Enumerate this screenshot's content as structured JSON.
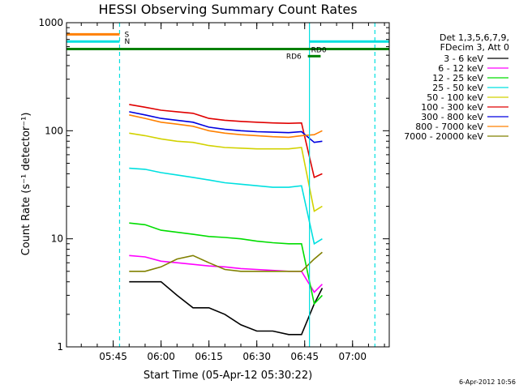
{
  "chart_data": {
    "type": "line",
    "title": "HESSI Observing Summary Count Rates",
    "xlabel": "Start Time (05-Apr-12 05:30:22)",
    "ylabel": "Count Rate (s⁻¹ detector⁻¹)",
    "yscale": "log",
    "ylim": [
      1,
      1000
    ],
    "xlim": [
      "05:30:22",
      "07:11:30"
    ],
    "x_ticks": [
      "05:45",
      "06:00",
      "06:15",
      "06:30",
      "06:45",
      "07:00"
    ],
    "y_ticks": [
      "1",
      "10",
      "100",
      "1000"
    ],
    "grid": false,
    "legend": {
      "placement": "right",
      "header": [
        "Det 1,3,5,6,7,9,",
        "FDecim 3, Att 0"
      ],
      "entries": [
        {
          "label": "3 - 6 keV",
          "color": "#000000"
        },
        {
          "label": "6 - 12 keV",
          "color": "#ff00ff"
        },
        {
          "label": "12 - 25 keV",
          "color": "#00dd00"
        },
        {
          "label": "25 - 50 keV",
          "color": "#00e0e0"
        },
        {
          "label": "50 - 100 keV",
          "color": "#d2d200"
        },
        {
          "label": "100 - 300 keV",
          "color": "#e00000"
        },
        {
          "label": "300 - 800 keV",
          "color": "#0000e0"
        },
        {
          "label": "800 - 7000 keV",
          "color": "#ff8000"
        },
        {
          "label": "7000 - 20000 keV",
          "color": "#808000"
        }
      ]
    },
    "series": [
      {
        "name": "3 - 6 keV",
        "color": "#000000",
        "x": [
          "05:50:00",
          "06:00:00",
          "06:05:00",
          "06:10:00",
          "06:15:00",
          "06:20:00",
          "06:25:00",
          "06:30:00",
          "06:35:00",
          "06:40:00",
          "06:44:00",
          "06:48:00",
          "06:50:30"
        ],
        "values": [
          4.0,
          4.0,
          3.0,
          2.3,
          2.3,
          2.0,
          1.6,
          1.4,
          1.4,
          1.3,
          1.3,
          2.5,
          3.5
        ]
      },
      {
        "name": "6 - 12 keV",
        "color": "#ff00ff",
        "x": [
          "05:50:00",
          "05:55:00",
          "06:00:00",
          "06:05:00",
          "06:10:00",
          "06:15:00",
          "06:20:00",
          "06:25:00",
          "06:30:00",
          "06:35:00",
          "06:40:00",
          "06:44:00",
          "06:48:00",
          "06:50:30"
        ],
        "values": [
          7.0,
          6.8,
          6.2,
          6.0,
          5.8,
          5.6,
          5.5,
          5.3,
          5.2,
          5.1,
          5.0,
          5.0,
          3.2,
          3.8
        ]
      },
      {
        "name": "12 - 25 keV",
        "color": "#00dd00",
        "x": [
          "05:50:00",
          "05:55:00",
          "06:00:00",
          "06:05:00",
          "06:10:00",
          "06:15:00",
          "06:20:00",
          "06:25:00",
          "06:30:00",
          "06:35:00",
          "06:40:00",
          "06:44:00",
          "06:48:00",
          "06:50:30"
        ],
        "values": [
          14.0,
          13.5,
          12.0,
          11.5,
          11.0,
          10.5,
          10.3,
          10.0,
          9.5,
          9.2,
          9.0,
          9.0,
          2.5,
          3.0
        ]
      },
      {
        "name": "25 - 50 keV",
        "color": "#00e0e0",
        "x": [
          "05:50:00",
          "05:55:00",
          "06:00:00",
          "06:05:00",
          "06:10:00",
          "06:15:00",
          "06:20:00",
          "06:25:00",
          "06:30:00",
          "06:35:00",
          "06:40:00",
          "06:44:00",
          "06:48:00",
          "06:50:30"
        ],
        "values": [
          45,
          44,
          41,
          39,
          37,
          35,
          33,
          32,
          31,
          30,
          30,
          31,
          9,
          10
        ]
      },
      {
        "name": "50 - 100 keV",
        "color": "#d2d200",
        "x": [
          "05:50:00",
          "05:55:00",
          "06:00:00",
          "06:05:00",
          "06:10:00",
          "06:15:00",
          "06:20:00",
          "06:25:00",
          "06:30:00",
          "06:35:00",
          "06:40:00",
          "06:44:00",
          "06:48:00",
          "06:50:30"
        ],
        "values": [
          95,
          90,
          84,
          80,
          78,
          73,
          70,
          69,
          68,
          68,
          68,
          70,
          18,
          20
        ]
      },
      {
        "name": "100 - 300 keV",
        "color": "#e00000",
        "x": [
          "05:50:00",
          "05:55:00",
          "06:00:00",
          "06:05:00",
          "06:10:00",
          "06:15:00",
          "06:20:00",
          "06:25:00",
          "06:30:00",
          "06:35:00",
          "06:40:00",
          "06:44:00",
          "06:48:00",
          "06:50:30"
        ],
        "values": [
          175,
          165,
          155,
          150,
          145,
          130,
          125,
          122,
          120,
          118,
          117,
          118,
          37,
          40
        ]
      },
      {
        "name": "300 - 800 keV",
        "color": "#0000e0",
        "x": [
          "05:50:00",
          "05:55:00",
          "06:00:00",
          "06:05:00",
          "06:10:00",
          "06:15:00",
          "06:20:00",
          "06:25:00",
          "06:30:00",
          "06:35:00",
          "06:40:00",
          "06:44:00",
          "06:48:00",
          "06:50:30"
        ],
        "values": [
          150,
          140,
          130,
          125,
          120,
          108,
          103,
          100,
          98,
          97,
          96,
          98,
          78,
          80
        ]
      },
      {
        "name": "800 - 7000 keV",
        "color": "#ff8000",
        "x": [
          "05:50:00",
          "05:55:00",
          "06:00:00",
          "06:05:00",
          "06:10:00",
          "06:15:00",
          "06:20:00",
          "06:25:00",
          "06:30:00",
          "06:35:00",
          "06:40:00",
          "06:44:00",
          "06:48:00",
          "06:50:30"
        ],
        "values": [
          140,
          130,
          120,
          115,
          110,
          100,
          95,
          92,
          90,
          88,
          87,
          90,
          92,
          100
        ]
      },
      {
        "name": "7000 - 20000 keV",
        "color": "#808000",
        "x": [
          "05:50:00",
          "05:55:00",
          "06:00:00",
          "06:05:00",
          "06:10:00",
          "06:15:00",
          "06:20:00",
          "06:25:00",
          "06:30:00",
          "06:35:00",
          "06:40:00",
          "06:44:00",
          "06:48:00",
          "06:50:30"
        ],
        "values": [
          5.0,
          5.0,
          5.5,
          6.5,
          7.0,
          6.0,
          5.2,
          5.0,
          5.0,
          5.0,
          5.0,
          5.0,
          6.5,
          7.5
        ]
      }
    ],
    "flags": [
      {
        "name": "S",
        "color": "#ff8000",
        "x": [
          "05:30:22",
          "05:47:00"
        ],
        "value": 780
      },
      {
        "name": "N",
        "color": "#00e0e0",
        "x": [
          "05:30:22",
          "05:47:00"
        ],
        "value": 670
      },
      {
        "name": "RD6",
        "color": "#008000",
        "x": [
          "05:30:22",
          "07:11:30"
        ],
        "value": 570
      },
      {
        "name": "RD0",
        "color": "#008000",
        "x": [
          "06:46:00",
          "06:50:00"
        ],
        "value": 490
      },
      {
        "name": "",
        "color": "#00e0e0",
        "x": [
          "06:46:30",
          "07:11:30"
        ],
        "value": 670
      }
    ],
    "vlines": [
      {
        "x": "05:47:00",
        "style": "dashed",
        "color": "#00e0e0"
      },
      {
        "x": "06:46:30",
        "style": "solid",
        "color": "#00e0e0"
      },
      {
        "x": "07:07:00",
        "style": "dashed",
        "color": "#00e0e0"
      }
    ],
    "footer": "6-Apr-2012 10:56"
  }
}
